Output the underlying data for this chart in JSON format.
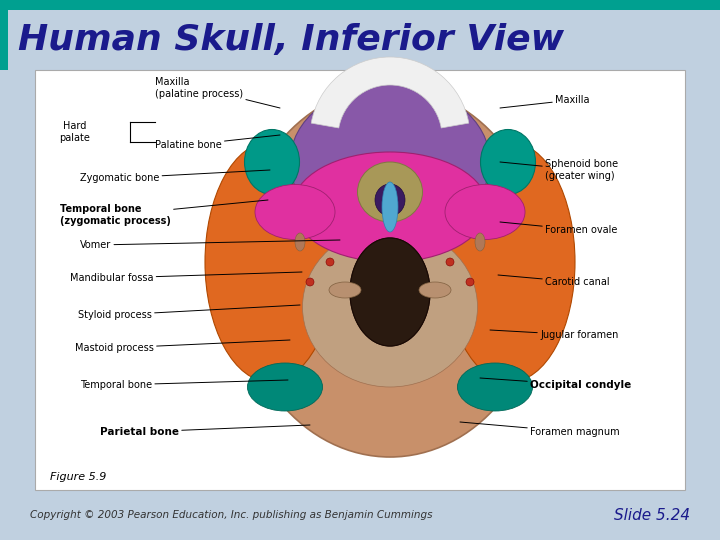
{
  "title": "Human Skull, Inferior View",
  "title_color": "#1a1a8c",
  "title_fontsize": 26,
  "title_style": "italic",
  "title_weight": "bold",
  "title_font": "sans-serif",
  "slide_bg": "#c0d0e0",
  "teal_bar_color": "#00a090",
  "teal_bar_top": "#00a090",
  "figure_label": "Figure 5.9",
  "copyright_text": "Copyright © 2003 Pearson Education, Inc. publishing as Benjamin Cummings",
  "slide_number": "Slide 5.24",
  "skull_colors": {
    "outer_skull": "#c8906a",
    "outer_edge": "#a07050",
    "temporal_orange": "#e06820",
    "temporal_edge": "#b04800",
    "zygomatic_teal": "#009988",
    "zygomatic_edge": "#007766",
    "maxilla_purple": "#8858a8",
    "maxilla_edge": "#604080",
    "sphenoid_pink": "#e030a0",
    "sphenoid_edge": "#a02070",
    "vomer_olive": "#a89858",
    "vomer_cyan": "#50a8d0",
    "foramen_dark": "#2a1a10",
    "teal_bottom": "#008878",
    "teeth_white": "#f0f0f0",
    "teeth_edge": "#cccccc",
    "dark_purple_center": "#3a1a60",
    "red_small": "#c03020",
    "occipital_tan": "#c0a080"
  }
}
